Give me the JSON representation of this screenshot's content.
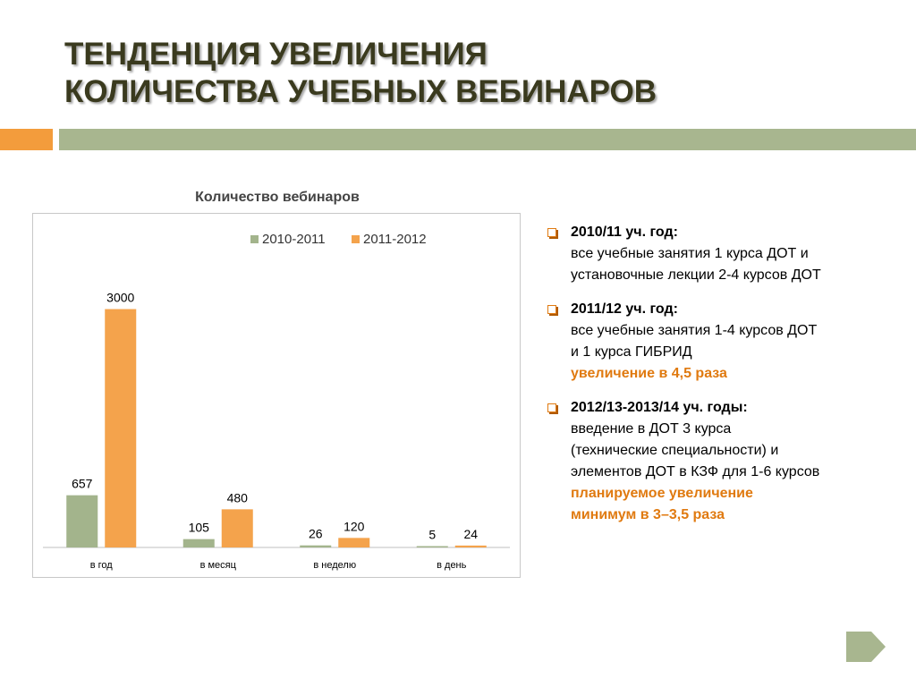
{
  "title": {
    "line1": "ТЕНДЕНЦИЯ УВЕЛИЧЕНИЯ",
    "line2": "КОЛИЧЕСТВА УЧЕБНЫХ ВЕБИНАРОВ"
  },
  "colors": {
    "accent_orange": "#f39c3c",
    "accent_green": "#a8b68f",
    "highlight_text": "#e07a10"
  },
  "chart_data": {
    "type": "bar",
    "title": "Количество вебинаров",
    "categories": [
      "в год",
      "в месяц",
      "в неделю",
      "в день"
    ],
    "series": [
      {
        "name": "2010-2011",
        "color": "#a3b48c",
        "values": [
          657,
          105,
          26,
          5
        ]
      },
      {
        "name": "2011-2012",
        "color": "#f4a34c",
        "values": [
          3000,
          480,
          120,
          24
        ]
      }
    ],
    "ylim": [
      0,
      3400
    ],
    "grid": false,
    "legend": "top-right",
    "data_labels": true
  },
  "bullets": [
    {
      "head": "2010/11 уч. год:",
      "lines": [
        "все учебные занятия 1 курса ДОТ и",
        "установочные лекции 2-4 курсов ДОТ"
      ],
      "highlight": []
    },
    {
      "head": "2011/12 уч. год:",
      "lines": [
        "все учебные занятия 1-4 курсов ДОТ",
        "и 1 курса ГИБРИД"
      ],
      "highlight": [
        "увеличение в 4,5 раза"
      ]
    },
    {
      "head": "2012/13-2013/14 уч. годы:",
      "lines": [
        "введение в ДОТ 3 курса",
        "(технические специальности) и",
        "элементов ДОТ в КЗФ для 1-6 курсов"
      ],
      "highlight": [
        "планируемое увеличение",
        "минимум в 3–3,5 раза"
      ]
    }
  ],
  "nav": {
    "next_icon": "play-arrow-icon"
  }
}
